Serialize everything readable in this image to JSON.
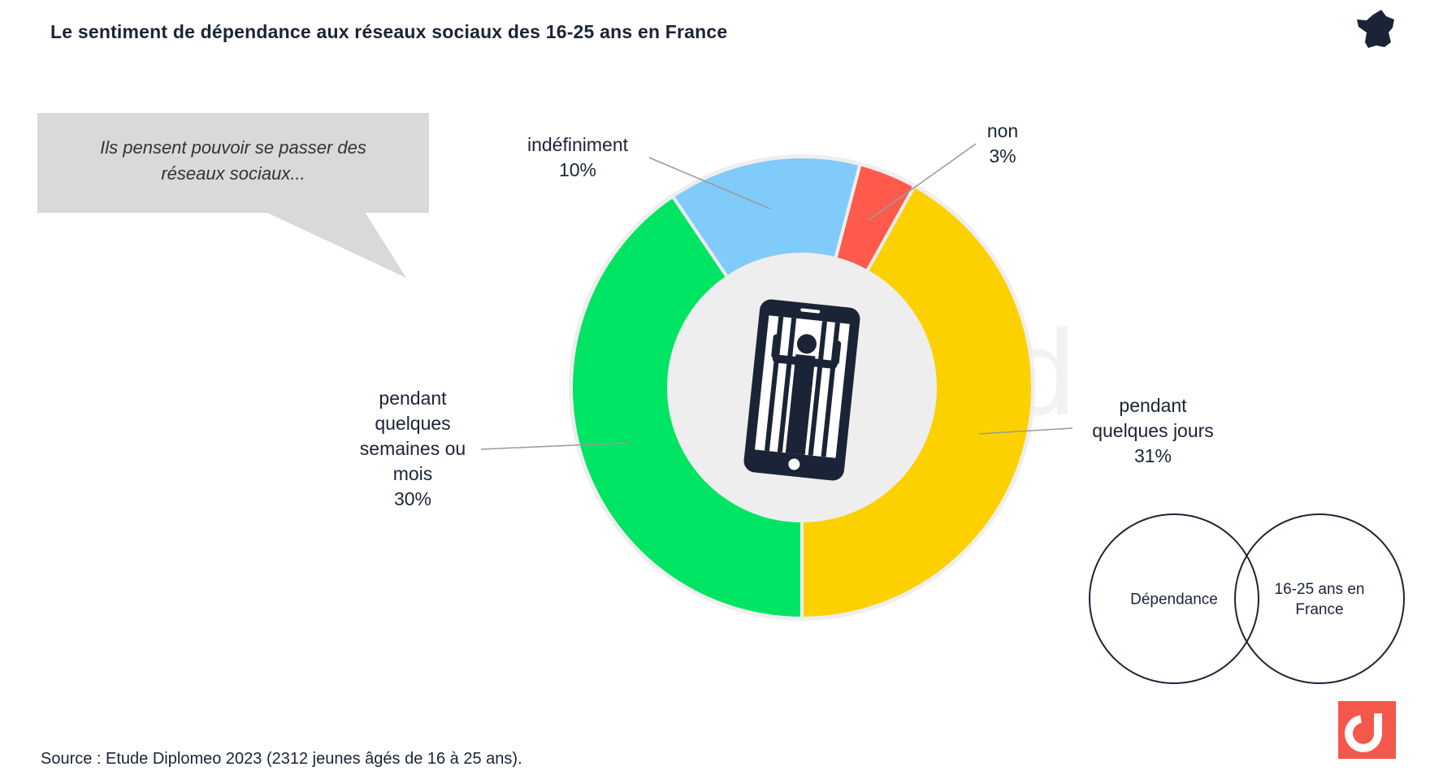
{
  "title": "Le sentiment de dépendance aux réseaux sociaux des 16-25 ans en France",
  "bubble": {
    "line1": "Ils pensent pouvoir se passer des",
    "line2": "réseaux  sociaux..."
  },
  "chart_data": {
    "type": "donut",
    "title": "Le sentiment de dépendance aux réseaux sociaux des 16-25 ans en France",
    "slices": [
      {
        "label": "pendant quelques jours",
        "value": 31,
        "display": "31%",
        "color": "#FDD000"
      },
      {
        "label": "pendant quelques semaines ou mois",
        "value": 30,
        "display": "30%",
        "color": "#00E463"
      },
      {
        "label": "indéfiniment",
        "value": 10,
        "display": "10%",
        "color": "#80CBFA"
      },
      {
        "label": "non",
        "value": 3,
        "display": "3%",
        "color": "#FF5A4C"
      }
    ],
    "center_icon": "phone-prison-icon"
  },
  "labels": {
    "jours": [
      "pendant",
      "quelques jours",
      "31%"
    ],
    "semaines": [
      "pendant",
      "quelques",
      "semaines ou",
      "mois",
      "30%"
    ],
    "indefiniment": [
      "indéfiniment",
      "10%"
    ],
    "non": [
      "non",
      "3%"
    ]
  },
  "venn": {
    "left": "Dépendance",
    "right_line1": "16-25 ans en",
    "right_line2": "France"
  },
  "source": "Source : Etude Diplomeo 2023  (2312  jeunes âgés de 16 à 25 ans).",
  "colors": {
    "navy": "#1b2436",
    "bubble": "#d9d9d9",
    "brand": "#F4584A"
  },
  "icons": {
    "map": "france-map-icon",
    "logo": "diplomeo-logo"
  }
}
